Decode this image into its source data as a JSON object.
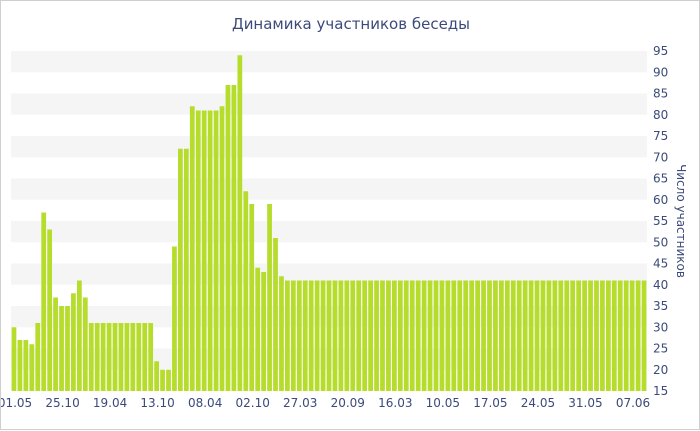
{
  "chart_data": {
    "type": "bar",
    "title": "Динамика участников беседы",
    "ylabel": "Число участников",
    "xlabel": "",
    "ylim": [
      15,
      95
    ],
    "y_ticks": [
      15,
      20,
      25,
      30,
      35,
      40,
      45,
      50,
      55,
      60,
      65,
      70,
      75,
      80,
      85,
      90,
      95
    ],
    "x_tick_labels": [
      "01.05",
      "25.10",
      "19.04",
      "13.10",
      "08.04",
      "02.10",
      "27.03",
      "20.09",
      "16.03",
      "10.05",
      "17.05",
      "24.05",
      "31.05",
      "07.06"
    ],
    "bar_color": "#b6dc2c",
    "grid": "horizontal-bands",
    "values": [
      30,
      27,
      27,
      26,
      31,
      57,
      53,
      37,
      35,
      35,
      38,
      41,
      37,
      31,
      31,
      31,
      31,
      31,
      31,
      31,
      31,
      31,
      31,
      31,
      22,
      20,
      20,
      49,
      72,
      72,
      82,
      81,
      81,
      81,
      81,
      82,
      87,
      87,
      94,
      62,
      59,
      44,
      43,
      59,
      51,
      42,
      41,
      41,
      41,
      41,
      41,
      41,
      41,
      41,
      41,
      41,
      41,
      41,
      41,
      41,
      41,
      41,
      41,
      41,
      41,
      41,
      41,
      41,
      41,
      41,
      41,
      41,
      41,
      41,
      41,
      41,
      41,
      41,
      41,
      41,
      41,
      41,
      41,
      41,
      41,
      41,
      41,
      41,
      41,
      41,
      41,
      41,
      41,
      41,
      41,
      41,
      41,
      41,
      41,
      41,
      41,
      41,
      41,
      41,
      41,
      41,
      41
    ]
  }
}
